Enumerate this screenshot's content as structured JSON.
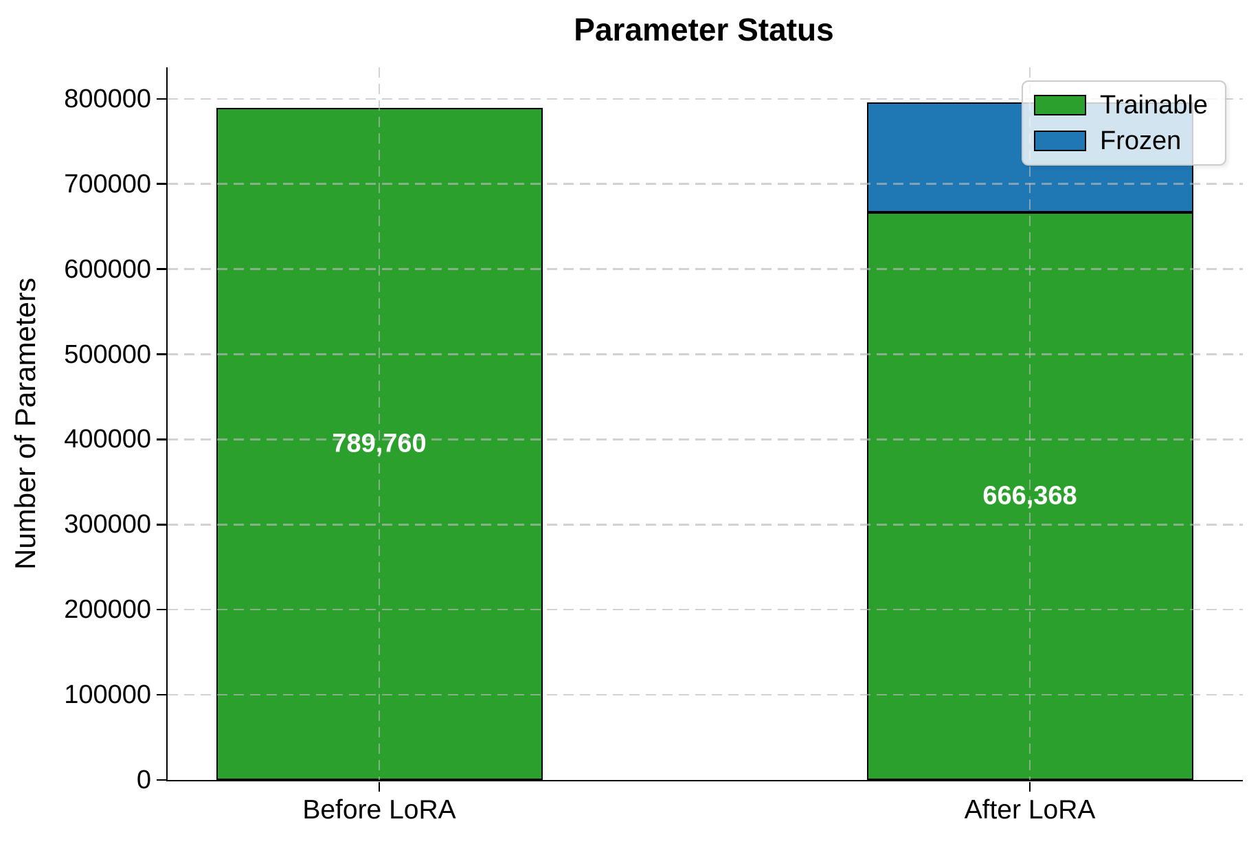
{
  "chart_data": {
    "type": "bar",
    "stacked": true,
    "title": "Parameter Status",
    "ylabel": "Number of Parameters",
    "xlabel": "",
    "categories": [
      "Before LoRA",
      "After LoRA"
    ],
    "series": [
      {
        "name": "Trainable",
        "color": "#2ca02c",
        "values": [
          789760,
          666368
        ]
      },
      {
        "name": "Frozen",
        "color": "#1f77b4",
        "values": [
          0,
          129760
        ]
      }
    ],
    "bar_value_labels": [
      "789,760",
      "666,368"
    ],
    "bar_value_label_color": "#ffffff",
    "yticks": [
      0,
      100000,
      200000,
      300000,
      400000,
      500000,
      600000,
      700000,
      800000
    ],
    "ylim": [
      0,
      837000
    ],
    "grid": {
      "style": "dashed",
      "color": "#bdbdbd",
      "above_bars": true
    },
    "legend": {
      "position": "upper right",
      "entries": [
        "Trainable",
        "Frozen"
      ]
    },
    "axis_color": "#000000",
    "bar_edge_color": "#000000"
  }
}
